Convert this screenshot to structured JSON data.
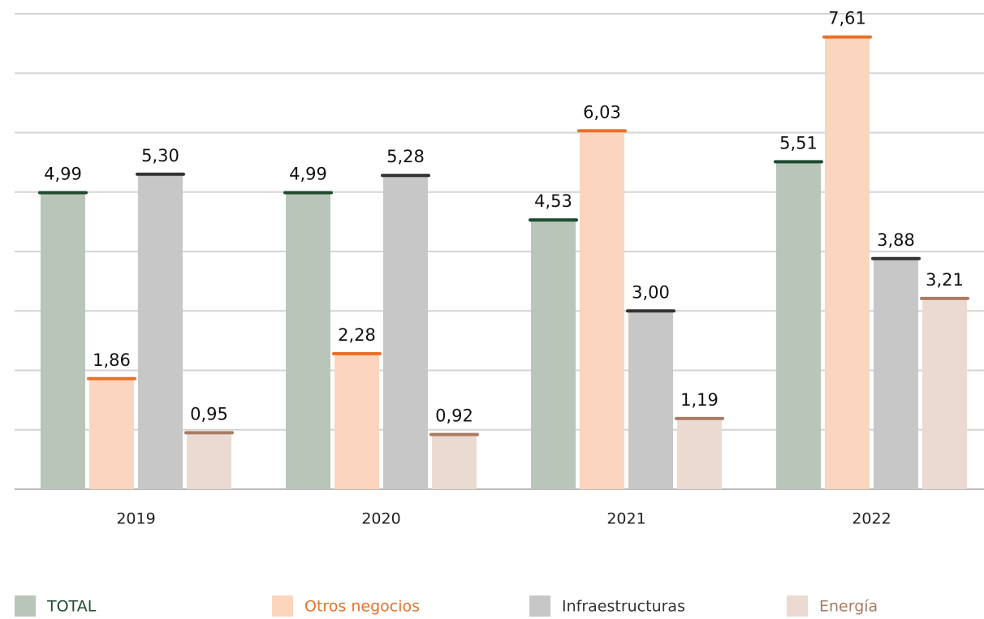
{
  "chart_data": {
    "type": "bar",
    "categories": [
      "2019",
      "2020",
      "2021",
      "2022"
    ],
    "series": [
      {
        "name": "TOTAL",
        "color": "#b9c5b9",
        "cap_color": "#1f4b30",
        "values": [
          4.99,
          4.99,
          4.53,
          5.51
        ],
        "value_labels": [
          "4,99",
          "4,99",
          "4,53",
          "5,51"
        ]
      },
      {
        "name": "Otros negocios",
        "color": "#fbd5bd",
        "cap_color": "#e9712b",
        "values": [
          1.86,
          2.28,
          6.03,
          7.61
        ],
        "value_labels": [
          "1,86",
          "2,28",
          "6,03",
          "7,61"
        ]
      },
      {
        "name": "Infraestructuras",
        "color": "#c7c7c7",
        "cap_color": "#333333",
        "values": [
          5.3,
          5.28,
          3.0,
          3.88
        ],
        "value_labels": [
          "5,30",
          "5,28",
          "3,00",
          "3,88"
        ]
      },
      {
        "name": "Energía",
        "color": "#ebdad2",
        "cap_color": "#a97b63",
        "values": [
          0.95,
          0.92,
          1.19,
          3.21
        ],
        "value_labels": [
          "0,95",
          "0,92",
          "1,19",
          "3,21"
        ]
      }
    ],
    "ylim": [
      0,
      8
    ],
    "yticks": [
      0,
      1,
      2,
      3,
      4,
      5,
      6,
      7,
      8
    ],
    "grid": true,
    "legend": "bottom"
  }
}
